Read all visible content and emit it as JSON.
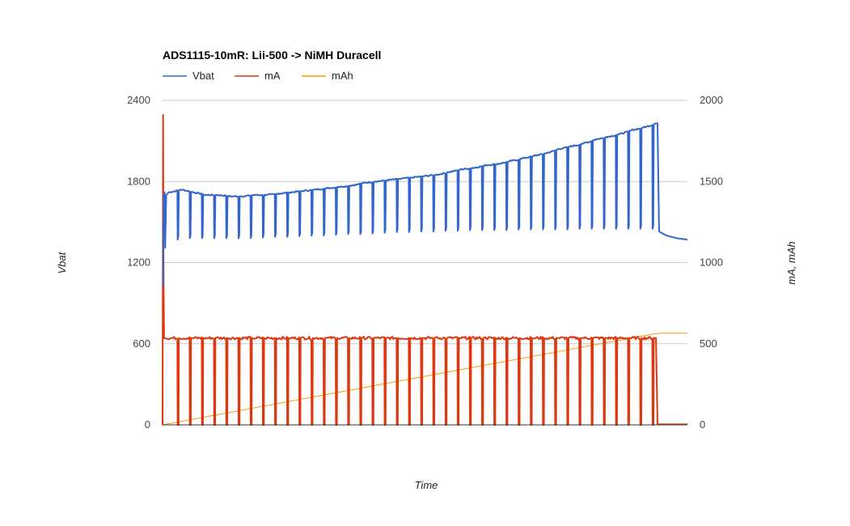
{
  "chart_data": {
    "type": "line",
    "title": "ADS1115-10mR: Lii-500 -> NiMH Duracell",
    "xlabel": "Time",
    "ylabel_left": "Vbat",
    "ylabel_right": "mA, mAh",
    "ylim_left": [
      0,
      2400
    ],
    "ylim_right": [
      0,
      2000
    ],
    "yticks_left": [
      "2400",
      "1800",
      "1200",
      "600",
      "0"
    ],
    "yticks_right": [
      "2000",
      "1500",
      "1000",
      "500",
      "0"
    ],
    "grid": true,
    "legend_position": "top-left",
    "colors": {
      "Vbat": "#3366cc",
      "mA": "#dc3912",
      "mAh": "#ff9900"
    },
    "series": [
      {
        "name": "Vbat",
        "axis": "left",
        "pulses": 40,
        "start_spike": [
          1020,
          1700
        ],
        "plateau_top": [
          1720,
          1740,
          1720,
          1700,
          1700,
          1690,
          1690,
          1700,
          1700,
          1710,
          1720,
          1730,
          1740,
          1750,
          1760,
          1770,
          1790,
          1800,
          1810,
          1820,
          1830,
          1840,
          1850,
          1870,
          1890,
          1900,
          1920,
          1930,
          1950,
          1970,
          1990,
          2010,
          2040,
          2060,
          2080,
          2110,
          2130,
          2150,
          2180,
          2200
        ],
        "pulse_bottom": [
          1370,
          1380,
          1380,
          1380,
          1380,
          1380,
          1380,
          1385,
          1390,
          1390,
          1395,
          1400,
          1400,
          1405,
          1410,
          1410,
          1415,
          1420,
          1425,
          1425,
          1430,
          1430,
          1435,
          1435,
          1440,
          1440,
          1440,
          1440,
          1445,
          1445,
          1445,
          1445,
          1445,
          1450,
          1450,
          1450,
          1450,
          1450,
          1450,
          1450
        ],
        "end_peak": 2230,
        "rest_values": [
          1430,
          1400,
          1380,
          1370
        ]
      },
      {
        "name": "mA",
        "axis": "right",
        "pulses": 40,
        "start_spike": [
          830,
          1910
        ],
        "on_level": 535,
        "off_level": 0,
        "rest_level": 3
      },
      {
        "name": "mAh",
        "axis": "right",
        "x_fraction": [
          0,
          0.935,
          0.95,
          1.0
        ],
        "values": [
          0,
          560,
          565,
          565
        ]
      }
    ]
  }
}
